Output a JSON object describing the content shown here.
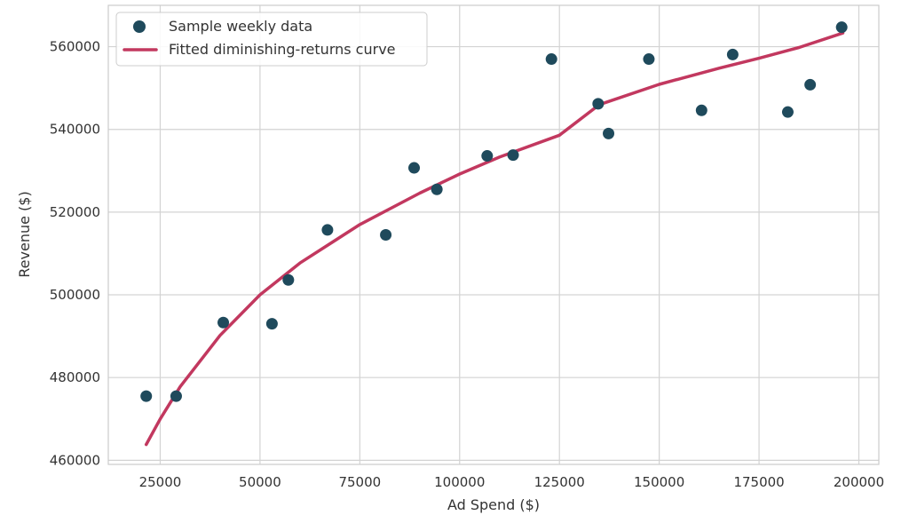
{
  "chart_data": {
    "type": "scatter",
    "title": "",
    "xlabel": "Ad Spend ($)",
    "ylabel": "Revenue ($)",
    "xlim": [
      12000,
      205000
    ],
    "ylim": [
      459000,
      570000
    ],
    "x_ticks": [
      25000,
      50000,
      75000,
      100000,
      125000,
      150000,
      175000,
      200000
    ],
    "y_ticks": [
      460000,
      480000,
      500000,
      520000,
      540000,
      560000
    ],
    "grid": true,
    "legend_position": "top-left",
    "series": [
      {
        "name": "Sample weekly data",
        "kind": "scatter",
        "color": "#1f4a5c",
        "points": [
          [
            21500,
            475500
          ],
          [
            29000,
            475500
          ],
          [
            40800,
            493300
          ],
          [
            53000,
            493000
          ],
          [
            57100,
            503600
          ],
          [
            66900,
            515700
          ],
          [
            81500,
            514500
          ],
          [
            88600,
            530700
          ],
          [
            94300,
            525500
          ],
          [
            106900,
            533600
          ],
          [
            113400,
            533800
          ],
          [
            123000,
            557000
          ],
          [
            134700,
            546200
          ],
          [
            137300,
            539000
          ],
          [
            147400,
            557000
          ],
          [
            160600,
            544600
          ],
          [
            168400,
            558100
          ],
          [
            182200,
            544200
          ],
          [
            187800,
            550800
          ],
          [
            195700,
            564700
          ]
        ]
      },
      {
        "name": "Fitted diminishing-returns curve",
        "kind": "line",
        "color": "#c2385f",
        "points": [
          [
            21500,
            463800
          ],
          [
            25000,
            470000
          ],
          [
            30000,
            477800
          ],
          [
            40000,
            490200
          ],
          [
            50000,
            500000
          ],
          [
            60000,
            507700
          ],
          [
            75000,
            517000
          ],
          [
            90000,
            524600
          ],
          [
            100000,
            529200
          ],
          [
            110000,
            533300
          ],
          [
            125000,
            538600
          ],
          [
            135000,
            546000
          ],
          [
            150000,
            550900
          ],
          [
            165000,
            554800
          ],
          [
            175000,
            557200
          ],
          [
            185000,
            559800
          ],
          [
            196000,
            563300
          ]
        ]
      }
    ]
  }
}
